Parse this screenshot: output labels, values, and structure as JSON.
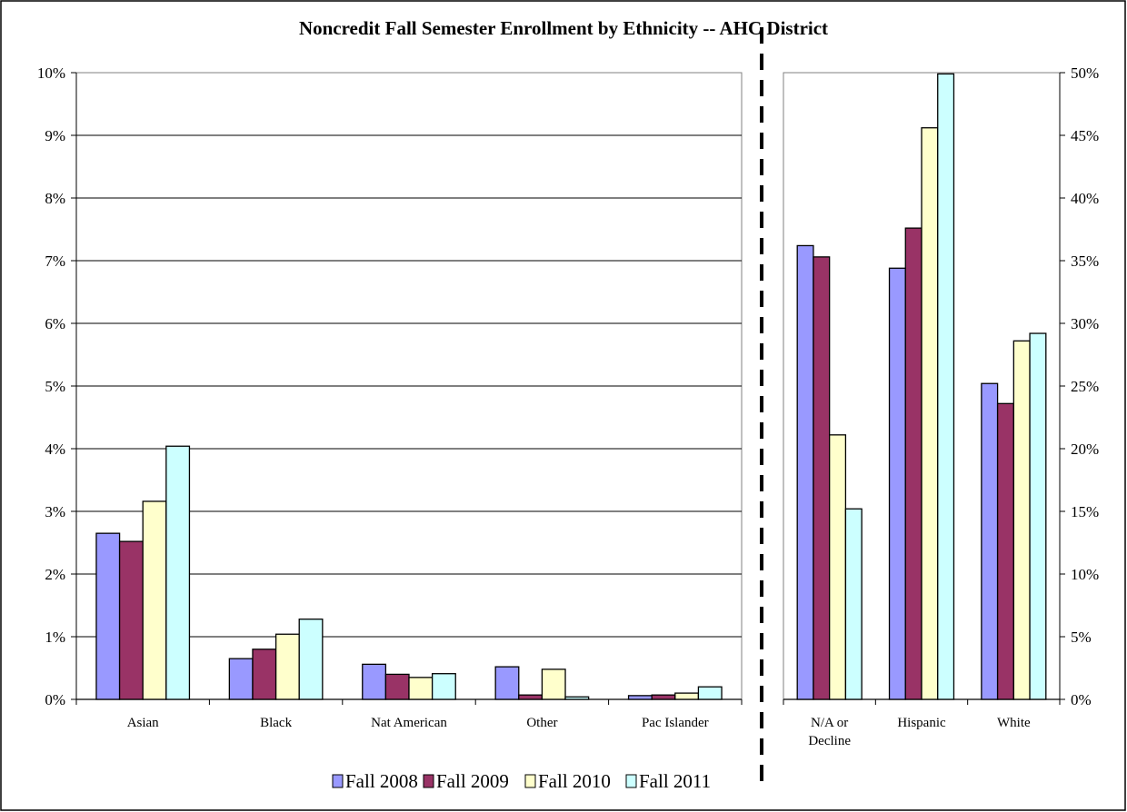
{
  "chart_data": [
    {
      "type": "bar",
      "title": "Noncredit Fall Semester Enrollment by Ethnicity -- AHC District",
      "categories": [
        "Asian",
        "Black",
        "Nat American",
        "Other",
        "Pac Islander"
      ],
      "ylim": [
        0,
        10
      ],
      "yticks": [
        "0%",
        "1%",
        "2%",
        "3%",
        "4%",
        "5%",
        "6%",
        "7%",
        "8%",
        "9%",
        "10%"
      ],
      "y_axis_side": "left",
      "grid": true,
      "series": [
        {
          "name": "Fall 2008",
          "values": [
            2.65,
            0.65,
            0.56,
            0.52,
            0.06
          ]
        },
        {
          "name": "Fall 2009",
          "values": [
            2.52,
            0.8,
            0.4,
            0.07,
            0.07
          ]
        },
        {
          "name": "Fall 2010",
          "values": [
            3.16,
            1.04,
            0.35,
            0.48,
            0.1
          ]
        },
        {
          "name": "Fall 2011",
          "values": [
            4.04,
            1.28,
            0.41,
            0.04,
            0.2
          ]
        }
      ]
    },
    {
      "type": "bar",
      "categories": [
        "N/A or Decline",
        "Hispanic",
        "White"
      ],
      "category_lines": [
        [
          "N/A or",
          "Decline"
        ],
        [
          "Hispanic"
        ],
        [
          "White"
        ]
      ],
      "ylim": [
        0,
        50
      ],
      "yticks": [
        "0%",
        "5%",
        "10%",
        "15%",
        "20%",
        "25%",
        "30%",
        "35%",
        "40%",
        "45%",
        "50%"
      ],
      "y_axis_side": "right",
      "grid": false,
      "series": [
        {
          "name": "Fall 2008",
          "values": [
            36.2,
            34.4,
            25.2
          ]
        },
        {
          "name": "Fall 2009",
          "values": [
            35.3,
            37.6,
            23.6
          ]
        },
        {
          "name": "Fall 2010",
          "values": [
            21.1,
            45.6,
            28.6
          ]
        },
        {
          "name": "Fall 2011",
          "values": [
            15.2,
            49.9,
            29.2
          ]
        }
      ]
    }
  ],
  "legend": {
    "position": "bottom",
    "items": [
      "Fall 2008",
      "Fall 2009",
      "Fall 2010",
      "Fall 2011"
    ]
  },
  "colors": {
    "Fall 2008": "#9999ff",
    "Fall 2009": "#993366",
    "Fall 2010": "#ffffcc",
    "Fall 2011": "#ccffff"
  }
}
